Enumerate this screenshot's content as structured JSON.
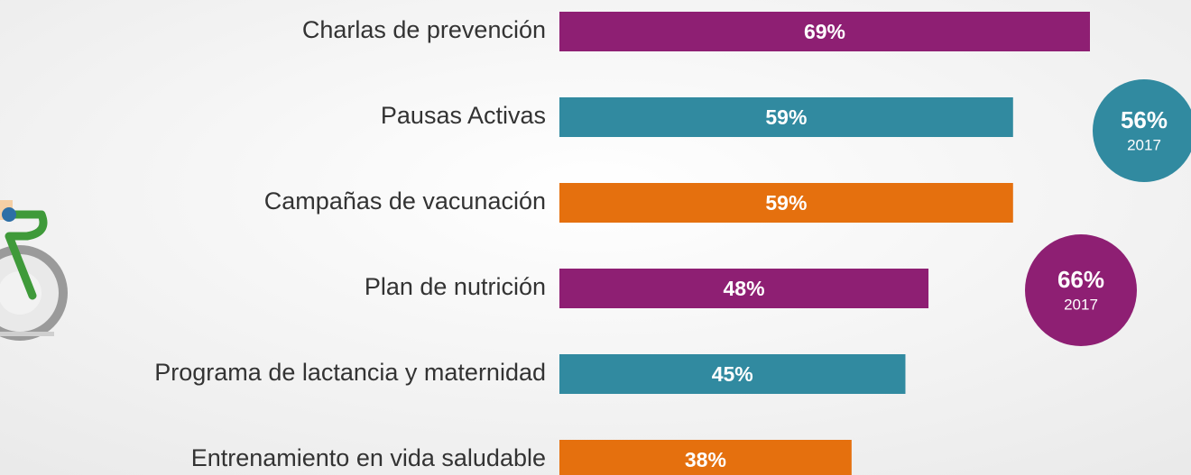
{
  "chart_data": {
    "type": "bar",
    "orientation": "horizontal",
    "categories": [
      "Charlas de prevención",
      "Pausas Activas",
      "Campañas de vacunación",
      "Plan de nutrición",
      "Programa de lactancia y maternidad",
      "Entrenamiento en vida saludable"
    ],
    "values": [
      69,
      59,
      59,
      48,
      45,
      38
    ],
    "value_labels": [
      "69%",
      "59%",
      "59%",
      "48%",
      "45%",
      "38%"
    ],
    "colors": [
      "#8e1f73",
      "#318aa0",
      "#e5700e",
      "#8e1f73",
      "#318aa0",
      "#e5700e"
    ],
    "annotations": [
      {
        "value": 56,
        "label": "56%",
        "year": "2017",
        "color": "#318aa0"
      },
      {
        "value": 66,
        "label": "66%",
        "year": "2017",
        "color": "#8e1f73"
      }
    ]
  }
}
